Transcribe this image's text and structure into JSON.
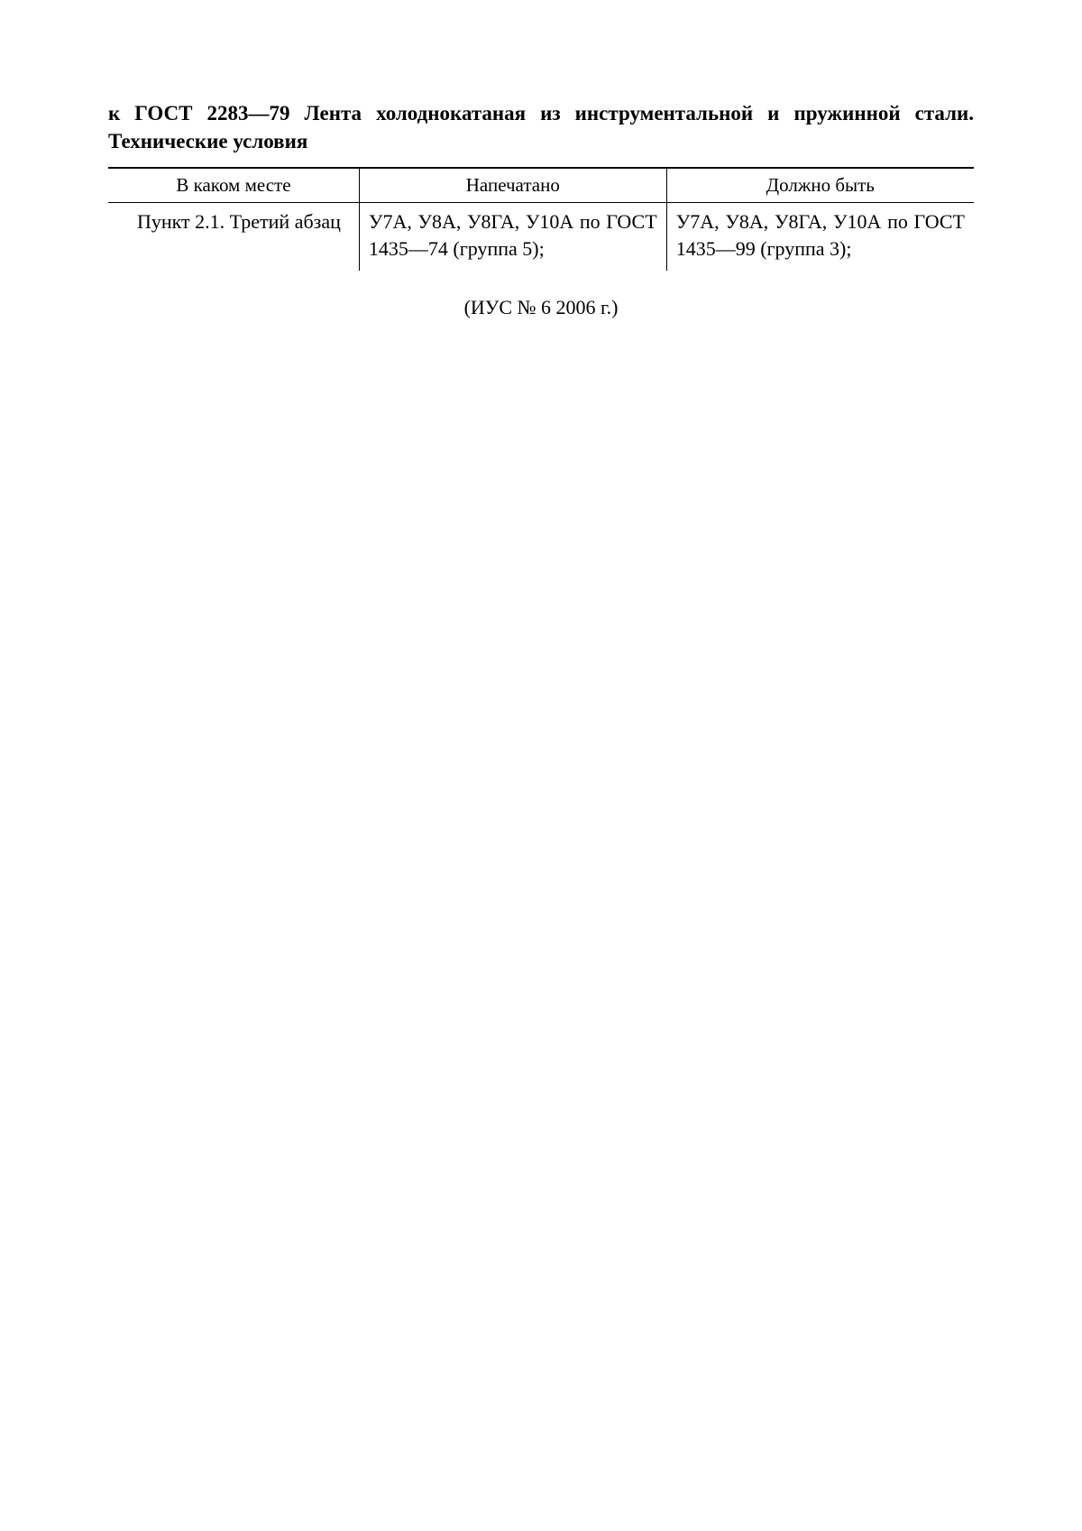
{
  "document": {
    "title": "к ГОСТ 2283—79 Лента холоднокатаная из инструментальной и пружинной стали. Технические условия",
    "footer": "(ИУС № 6 2006 г.)"
  },
  "table": {
    "headers": {
      "col1": "В каком месте",
      "col2": "Напечатано",
      "col3": "Должно быть"
    },
    "rows": [
      {
        "location": "Пункт 2.1. Третий абзац",
        "printed": "У7А, У8А, У8ГА, У10А по ГОСТ 1435—74 (группа 5);",
        "should_be": "У7А, У8А, У8ГА, У10А по ГОСТ 1435—99 (группа 3);"
      }
    ]
  },
  "styling": {
    "page_background": "#ffffff",
    "text_color": "#000000",
    "font_family": "Times New Roman",
    "title_fontsize": 23,
    "body_fontsize": 22,
    "header_fontsize": 21,
    "border_color": "#000000",
    "top_rule_width": 2,
    "inner_rule_width": 1.5,
    "column_widths": [
      "29%",
      "35.5%",
      "35.5%"
    ]
  }
}
